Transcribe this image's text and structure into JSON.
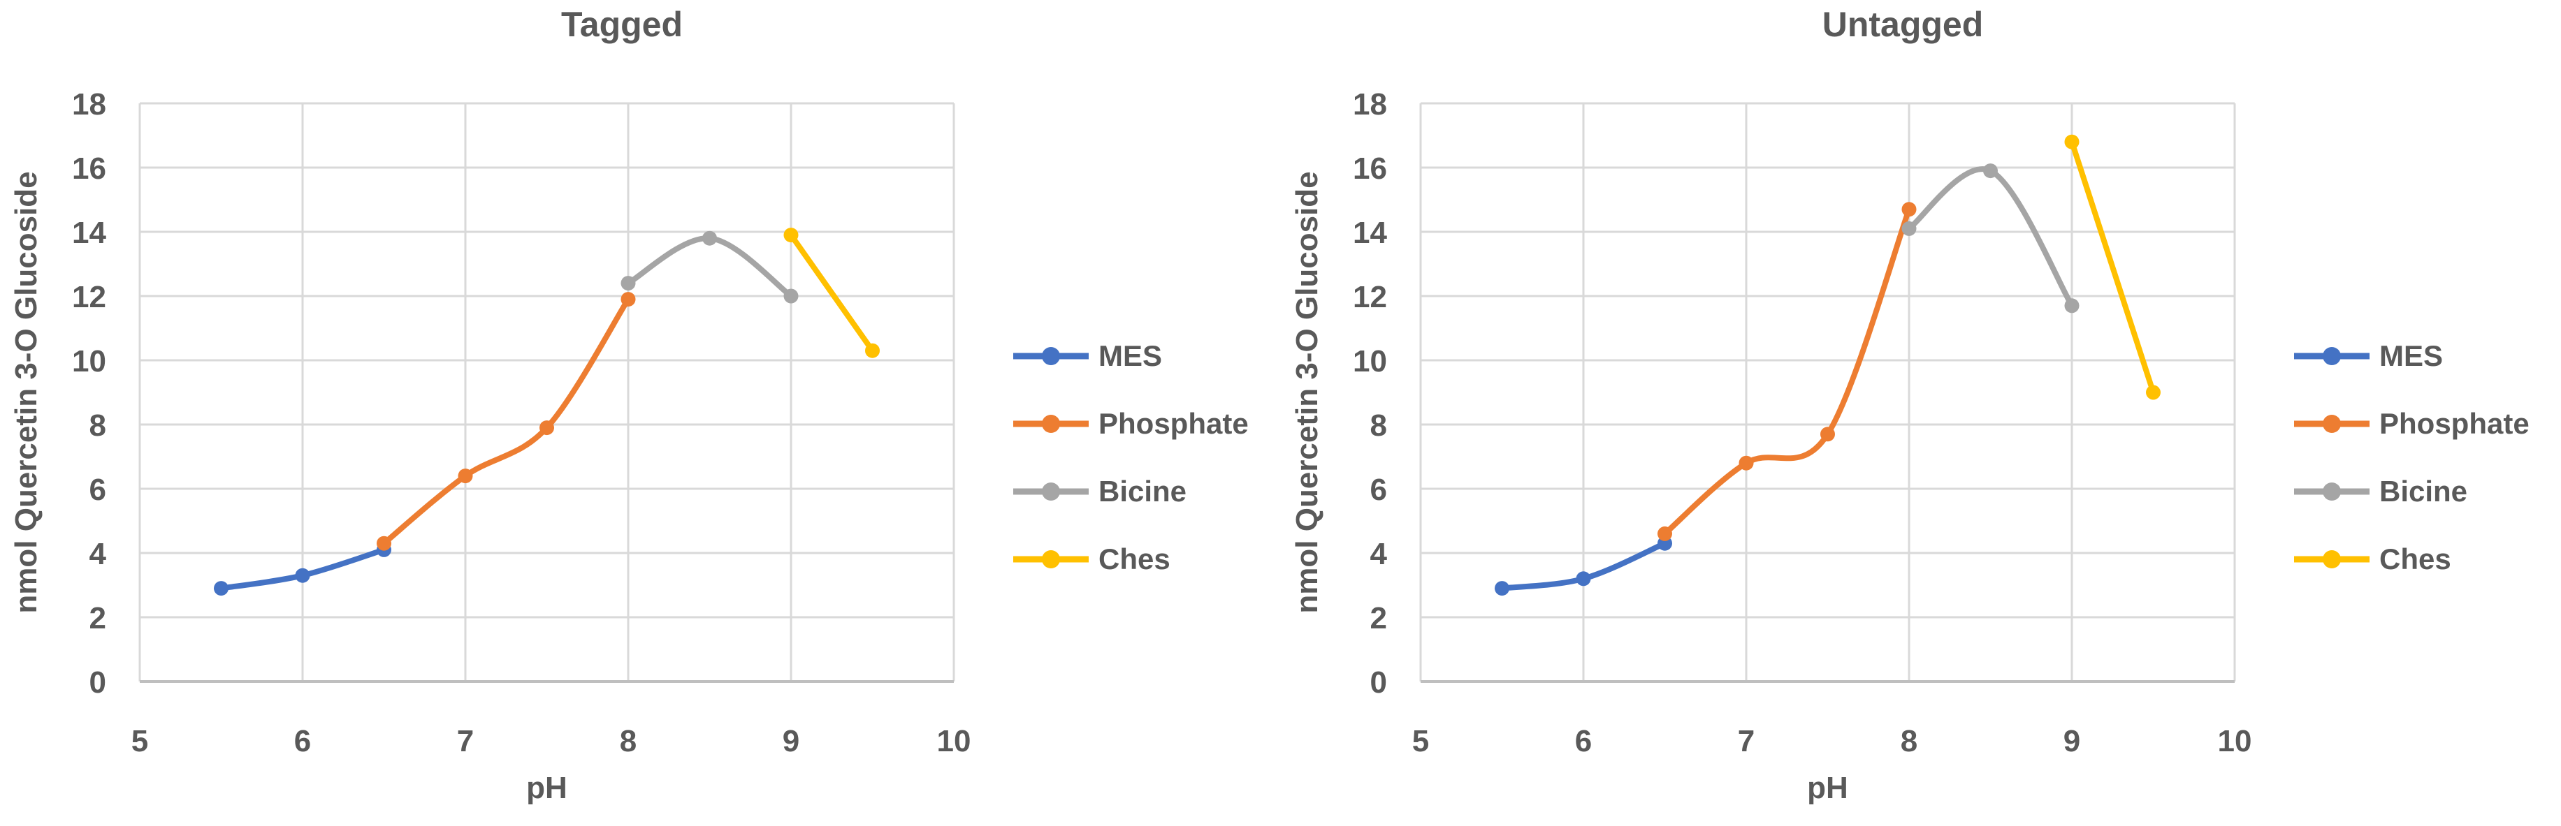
{
  "theme": {
    "background": "#ffffff",
    "text_color": "#595959",
    "grid_color": "#d9d9d9",
    "axis_color": "#bfbfbf"
  },
  "chart_data": [
    {
      "type": "line",
      "title": "Tagged",
      "xlabel": "pH",
      "ylabel": "nmol Quercetin 3-O Glucoside",
      "xlim": [
        5,
        10
      ],
      "ylim": [
        0,
        18
      ],
      "xticks": [
        5,
        6,
        7,
        8,
        9,
        10
      ],
      "yticks": [
        0,
        2,
        4,
        6,
        8,
        10,
        12,
        14,
        16,
        18
      ],
      "grid": true,
      "smooth": true,
      "legend_position": "right",
      "series": [
        {
          "name": "MES",
          "color": "#4472c4",
          "x": [
            5.5,
            6,
            6.5
          ],
          "y": [
            2.9,
            3.3,
            4.1
          ]
        },
        {
          "name": "Phosphate",
          "color": "#ed7d31",
          "x": [
            6.5,
            7,
            7.5,
            8
          ],
          "y": [
            4.3,
            6.4,
            7.9,
            11.9
          ]
        },
        {
          "name": "Bicine",
          "color": "#a5a5a5",
          "x": [
            8,
            8.5,
            9
          ],
          "y": [
            12.4,
            13.8,
            12.0
          ]
        },
        {
          "name": "Ches",
          "color": "#ffc000",
          "x": [
            9,
            9.5
          ],
          "y": [
            13.9,
            10.3
          ]
        }
      ]
    },
    {
      "type": "line",
      "title": "Untagged",
      "xlabel": "pH",
      "ylabel": "nmol Quercetin 3-O Glucoside",
      "xlim": [
        5,
        10
      ],
      "ylim": [
        0,
        18
      ],
      "xticks": [
        5,
        6,
        7,
        8,
        9,
        10
      ],
      "yticks": [
        0,
        2,
        4,
        6,
        8,
        10,
        12,
        14,
        16,
        18
      ],
      "grid": true,
      "smooth": true,
      "legend_position": "right",
      "series": [
        {
          "name": "MES",
          "color": "#4472c4",
          "x": [
            5.5,
            6,
            6.5
          ],
          "y": [
            2.9,
            3.2,
            4.3
          ]
        },
        {
          "name": "Phosphate",
          "color": "#ed7d31",
          "x": [
            6.5,
            7,
            7.5,
            8
          ],
          "y": [
            4.6,
            6.8,
            7.7,
            14.7
          ]
        },
        {
          "name": "Bicine",
          "color": "#a5a5a5",
          "x": [
            8,
            8.5,
            9
          ],
          "y": [
            14.1,
            15.9,
            11.7
          ]
        },
        {
          "name": "Ches",
          "color": "#ffc000",
          "x": [
            9,
            9.5
          ],
          "y": [
            16.8,
            9.0
          ]
        }
      ]
    }
  ]
}
